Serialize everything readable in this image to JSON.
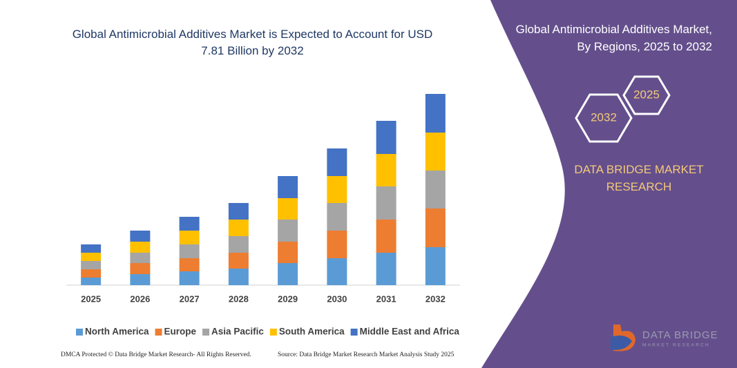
{
  "chart_data": {
    "type": "bar",
    "stacked": true,
    "title": "Global Antimicrobial Additives Market is Expected to Account for USD 7.81 Billion by 2032",
    "categories": [
      "2025",
      "2026",
      "2027",
      "2028",
      "2029",
      "2030",
      "2031",
      "2032"
    ],
    "series": [
      {
        "name": "North America",
        "color": "#5b9bd5",
        "values": [
          11,
          16,
          20,
          24,
          32,
          39,
          47,
          55
        ]
      },
      {
        "name": "Europe",
        "color": "#ed7d31",
        "values": [
          12,
          16,
          19,
          23,
          31,
          40,
          48,
          56
        ]
      },
      {
        "name": "Asia Pacific",
        "color": "#a5a5a5",
        "values": [
          12,
          15,
          20,
          24,
          32,
          40,
          48,
          55
        ]
      },
      {
        "name": "South America",
        "color": "#ffc000",
        "values": [
          12,
          16,
          20,
          24,
          31,
          39,
          47,
          55
        ]
      },
      {
        "name": "Middle East and Africa",
        "color": "#4472c4",
        "values": [
          12,
          16,
          20,
          24,
          32,
          40,
          48,
          56
        ]
      }
    ],
    "ylim": [
      0,
      300
    ]
  },
  "panel": {
    "heading": "Global Antimicrobial Additives Market, By Regions, 2025 to 2032",
    "hexagons": [
      "2032",
      "2025"
    ],
    "brand": "DATA BRIDGE MARKET RESEARCH"
  },
  "logo": {
    "name": "DATA BRIDGE",
    "tagline": "MARKET RESEARCH"
  },
  "footer": {
    "copyright": "DMCA Protected © Data Bridge Market Research- All Rights Reserved.",
    "source": "Source: Data Bridge Market Research Market Analysis Study 2025"
  }
}
